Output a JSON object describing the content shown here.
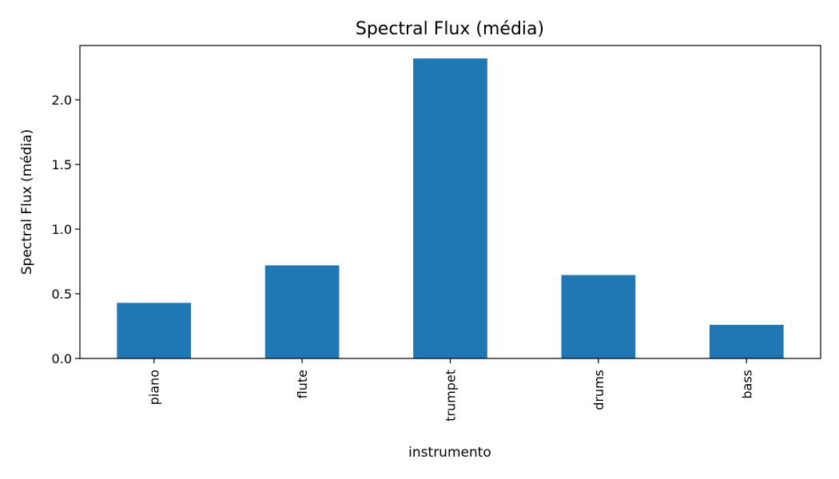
{
  "chart_data": {
    "type": "bar",
    "title": "Spectral Flux (média)",
    "xlabel": "instrumento",
    "ylabel": "Spectral Flux (média)",
    "categories": [
      "piano",
      "flute",
      "trumpet",
      "drums",
      "bass"
    ],
    "values": [
      0.43,
      0.72,
      2.32,
      0.645,
      0.26
    ],
    "ylim": [
      0,
      2.42
    ],
    "yticks": [
      0.0,
      0.5,
      1.0,
      1.5,
      2.0
    ],
    "ytick_labels": [
      "0.0",
      "0.5",
      "1.0",
      "1.5",
      "2.0"
    ],
    "grid": false,
    "legend": "none",
    "bar_color": "#1f77b4"
  }
}
